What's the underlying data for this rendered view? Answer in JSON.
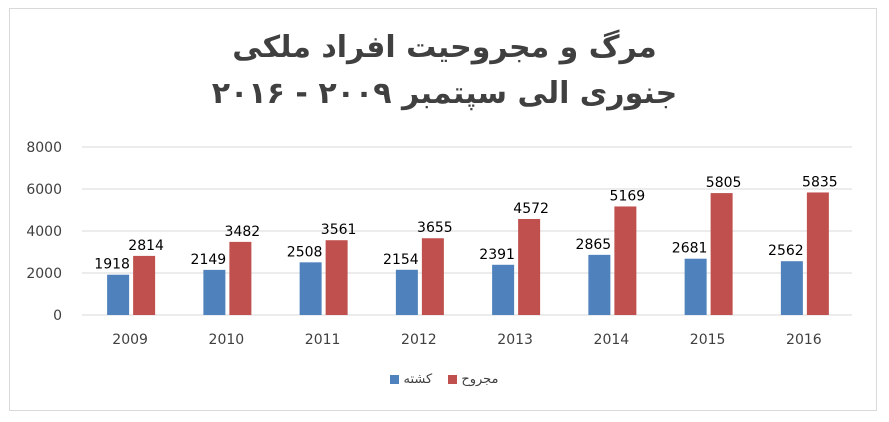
{
  "chart_data": {
    "type": "bar",
    "title": "مرگ و مجروحیت افراد ملکی",
    "subtitle": "جنوری الی سپتمبر ۲۰۰۹ - ۲۰۱۶",
    "categories": [
      "2009",
      "2010",
      "2011",
      "2012",
      "2013",
      "2014",
      "2015",
      "2016"
    ],
    "series": [
      {
        "name": "کشته",
        "color": "#4f81bd",
        "values": [
          1918,
          2149,
          2508,
          2154,
          2391,
          2865,
          2681,
          2562
        ]
      },
      {
        "name": "مجروح",
        "color": "#c0504d",
        "values": [
          2814,
          3482,
          3561,
          3655,
          4572,
          5169,
          5805,
          5835
        ]
      }
    ],
    "ylim": [
      0,
      8000
    ],
    "yticks": [
      0,
      2000,
      4000,
      6000,
      8000
    ],
    "grid": true,
    "legend_position": "bottom"
  }
}
